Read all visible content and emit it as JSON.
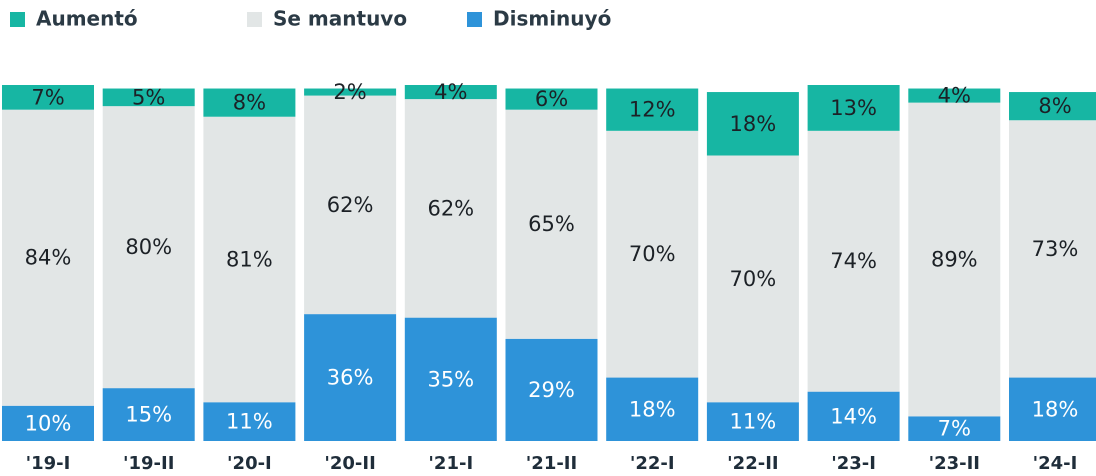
{
  "chart_data": {
    "type": "stacked_bar",
    "categories": [
      "'19-I",
      "'19-II",
      "'20-I",
      "'20-II",
      "'21-I",
      "'21-II",
      "'22-I",
      "'22-II",
      "'23-I",
      "'23-II",
      "'24-I"
    ],
    "series": [
      {
        "name": "Aumentó",
        "color": "#17b6a3",
        "values": [
          7,
          5,
          8,
          2,
          4,
          6,
          12,
          18,
          13,
          4,
          8
        ],
        "value_labels": [
          "7%",
          "5%",
          "8%",
          "2%",
          "4%",
          "6%",
          "12%",
          "18%",
          "13%",
          "4%",
          "8%"
        ]
      },
      {
        "name": "Se mantuvo",
        "color": "#e2e6e6",
        "values": [
          84,
          80,
          81,
          62,
          62,
          65,
          70,
          70,
          74,
          89,
          73
        ],
        "value_labels": [
          "84%",
          "80%",
          "81%",
          "62%",
          "62%",
          "65%",
          "70%",
          "70%",
          "74%",
          "89%",
          "73%"
        ]
      },
      {
        "name": "Disminuyó",
        "color": "#2e93d9",
        "values": [
          10,
          15,
          11,
          36,
          35,
          29,
          18,
          11,
          14,
          7,
          18
        ],
        "value_labels": [
          "10%",
          "15%",
          "11%",
          "36%",
          "35%",
          "29%",
          "18%",
          "11%",
          "14%",
          "7%",
          "18%"
        ]
      }
    ],
    "legend": "top-left"
  }
}
